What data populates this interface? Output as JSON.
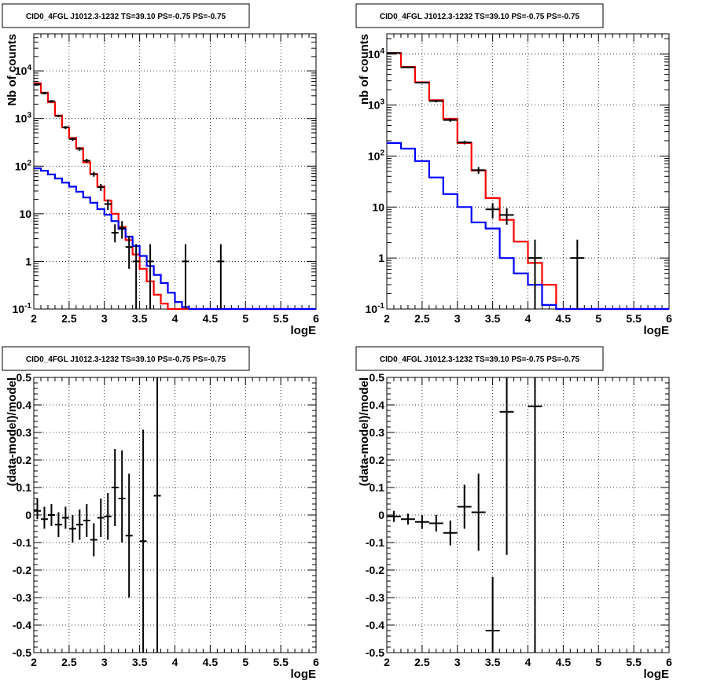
{
  "chart_data": [
    {
      "id": "panel1",
      "type": "step-histogram",
      "title": "CID0_4FGL J1012.3-1232 TS=39.10 PS=-0.75 PS=-0.75",
      "xlabel": "logE",
      "ylabel": "Nb of counts",
      "scale": "log",
      "xlim": [
        2,
        6
      ],
      "ylim": [
        0.1,
        60000
      ],
      "xticks": [
        "2",
        "2.5",
        "3",
        "3.5",
        "4",
        "4.5",
        "5",
        "5.5",
        "6"
      ],
      "yticks": [
        "10^-1",
        "1",
        "10",
        "10^2",
        "10^3",
        "10^4"
      ],
      "grid": true,
      "bin_width": 0.1,
      "series": [
        {
          "color": "#ff0000",
          "values": [
            5500,
            3500,
            2200,
            1150,
            650,
            390,
            240,
            120,
            68,
            37,
            19,
            10,
            5.3,
            2.8,
            1.4,
            0.7,
            0.38,
            0.2,
            0.13,
            0.1,
            0.1,
            0.1,
            0.1,
            0.1,
            0.1,
            0.1,
            0.1,
            0.1,
            0.1,
            0.1,
            0.1,
            0.1,
            0.1,
            0.1,
            0.1,
            0.1,
            0.1,
            0.1,
            0.1,
            0.1
          ]
        },
        {
          "color": "#0000ff",
          "values": [
            90,
            80,
            67,
            55,
            45,
            37,
            29,
            22,
            17,
            12.5,
            9.5,
            7,
            4.8,
            3.3,
            2.1,
            1.3,
            0.8,
            0.52,
            0.35,
            0.22,
            0.14,
            0.11,
            0.1,
            0.1,
            0.1,
            0.1,
            0.1,
            0.1,
            0.1,
            0.1,
            0.1,
            0.1,
            0.1,
            0.1,
            0.1,
            0.1,
            0.1,
            0.1,
            0.1,
            0.1
          ]
        }
      ],
      "points": [
        {
          "x": 2.05,
          "y": 5200,
          "ylo": 4900,
          "yhi": 5500
        },
        {
          "x": 2.15,
          "y": 3400,
          "ylo": 3200,
          "yhi": 3600
        },
        {
          "x": 2.25,
          "y": 2300,
          "ylo": 2150,
          "yhi": 2450
        },
        {
          "x": 2.35,
          "y": 1130,
          "ylo": 1060,
          "yhi": 1200
        },
        {
          "x": 2.45,
          "y": 650,
          "ylo": 600,
          "yhi": 700
        },
        {
          "x": 2.55,
          "y": 370,
          "ylo": 340,
          "yhi": 400
        },
        {
          "x": 2.65,
          "y": 230,
          "ylo": 210,
          "yhi": 250
        },
        {
          "x": 2.75,
          "y": 130,
          "ylo": 118,
          "yhi": 142
        },
        {
          "x": 2.85,
          "y": 68,
          "ylo": 60,
          "yhi": 76
        },
        {
          "x": 2.95,
          "y": 36,
          "ylo": 30,
          "yhi": 42
        },
        {
          "x": 3.05,
          "y": 16,
          "ylo": 12,
          "yhi": 20
        },
        {
          "x": 3.15,
          "y": 4,
          "ylo": 2.5,
          "yhi": 6
        },
        {
          "x": 3.25,
          "y": 5,
          "ylo": 3,
          "yhi": 7
        },
        {
          "x": 3.35,
          "y": 2,
          "ylo": 0.7,
          "yhi": 3.4
        },
        {
          "x": 3.45,
          "y": 1,
          "ylo": 0.1,
          "yhi": 2.3
        },
        {
          "x": 3.65,
          "y": 1,
          "ylo": 0.1,
          "yhi": 2.3
        },
        {
          "x": 4.15,
          "y": 1,
          "ylo": 0.1,
          "yhi": 2.3
        },
        {
          "x": 4.65,
          "y": 1,
          "ylo": 0.1,
          "yhi": 2.3
        }
      ]
    },
    {
      "id": "panel2",
      "type": "step-histogram",
      "title": "CID0_4FGL J1012.3-1232 TS=39.10 PS=-0.75 PS=-0.75",
      "xlabel": "logE",
      "ylabel": "nb of counts",
      "scale": "log",
      "xlim": [
        2,
        6
      ],
      "ylim": [
        0.1,
        25000
      ],
      "xticks": [
        "2",
        "2.5",
        "3",
        "3.5",
        "4",
        "4.5",
        "5",
        "5.5",
        "6"
      ],
      "yticks": [
        "10^-1",
        "1",
        "10",
        "10^2",
        "10^3",
        "10^4"
      ],
      "grid": true,
      "bin_width": 0.2,
      "series": [
        {
          "color": "#ff0000",
          "values": [
            10500,
            5600,
            2800,
            1250,
            540,
            180,
            52,
            15,
            5.6,
            2.1,
            0.8,
            0.3,
            0.1,
            0.1,
            0.1,
            0.1,
            0.1,
            0.1,
            0.1,
            0.1
          ]
        },
        {
          "color": "#0000ff",
          "values": [
            180,
            140,
            80,
            38,
            18,
            10,
            5,
            3.8,
            1,
            0.5,
            0.3,
            0.12,
            0.1,
            0.1,
            0.1,
            0.1,
            0.1,
            0.1,
            0.1,
            0.1
          ]
        }
      ],
      "points": [
        {
          "x": 2.1,
          "y": 10500,
          "ylo": 10200,
          "yhi": 10800
        },
        {
          "x": 2.3,
          "y": 5500,
          "ylo": 5300,
          "yhi": 5700
        },
        {
          "x": 2.5,
          "y": 2750,
          "ylo": 2650,
          "yhi": 2850
        },
        {
          "x": 2.7,
          "y": 1200,
          "ylo": 1130,
          "yhi": 1270
        },
        {
          "x": 2.9,
          "y": 510,
          "ylo": 470,
          "yhi": 550
        },
        {
          "x": 3.1,
          "y": 185,
          "ylo": 170,
          "yhi": 200
        },
        {
          "x": 3.3,
          "y": 53,
          "ylo": 45,
          "yhi": 61
        },
        {
          "x": 3.5,
          "y": 9,
          "ylo": 6,
          "yhi": 12
        },
        {
          "x": 3.7,
          "y": 7,
          "ylo": 4.5,
          "yhi": 9.5
        },
        {
          "x": 4.1,
          "y": 1,
          "ylo": 0.1,
          "yhi": 2.3
        },
        {
          "x": 4.7,
          "y": 1,
          "ylo": 0.1,
          "yhi": 2.3
        }
      ]
    },
    {
      "id": "panel3",
      "type": "scatter-errorbar",
      "title": "CID0_4FGL J1012.3-1232 TS=39.10 PS=-0.75 PS=-0.75",
      "xlabel": "logE",
      "ylabel": "(data-model)/model",
      "scale": "linear",
      "xlim": [
        2,
        6
      ],
      "ylim": [
        -0.5,
        0.5
      ],
      "xticks": [
        "2",
        "2.5",
        "3",
        "3.5",
        "4",
        "4.5",
        "5",
        "5.5",
        "6"
      ],
      "yticks": [
        "-0.5",
        "-0.4",
        "-0.3",
        "-0.2",
        "-0.1",
        "0",
        "0.1",
        "0.2",
        "0.3",
        "0.4",
        "0.5"
      ],
      "grid": true,
      "bin_half_width": 0.05,
      "points": [
        {
          "x": 2.05,
          "y": 0.015,
          "ylo": -0.015,
          "yhi": 0.06
        },
        {
          "x": 2.15,
          "y": -0.015,
          "ylo": -0.05,
          "yhi": 0.03
        },
        {
          "x": 2.25,
          "y": 0.0,
          "ylo": -0.04,
          "yhi": 0.04
        },
        {
          "x": 2.35,
          "y": -0.035,
          "ylo": -0.08,
          "yhi": 0.01
        },
        {
          "x": 2.45,
          "y": -0.01,
          "ylo": -0.05,
          "yhi": 0.03
        },
        {
          "x": 2.55,
          "y": -0.05,
          "ylo": -0.1,
          "yhi": 0.0
        },
        {
          "x": 2.65,
          "y": -0.035,
          "ylo": -0.09,
          "yhi": 0.02
        },
        {
          "x": 2.75,
          "y": -0.02,
          "ylo": -0.08,
          "yhi": 0.04
        },
        {
          "x": 2.85,
          "y": -0.09,
          "ylo": -0.15,
          "yhi": -0.03
        },
        {
          "x": 2.95,
          "y": -0.01,
          "ylo": -0.08,
          "yhi": 0.06
        },
        {
          "x": 3.05,
          "y": -0.005,
          "ylo": -0.09,
          "yhi": 0.08
        },
        {
          "x": 3.15,
          "y": 0.1,
          "ylo": -0.04,
          "yhi": 0.24
        },
        {
          "x": 3.25,
          "y": 0.06,
          "ylo": -0.1,
          "yhi": 0.235
        },
        {
          "x": 3.35,
          "y": -0.075,
          "ylo": -0.3,
          "yhi": 0.15
        },
        {
          "x": 3.55,
          "y": -0.095,
          "ylo": -0.5,
          "yhi": 0.31
        },
        {
          "x": 3.75,
          "y": 0.07,
          "ylo": -0.5,
          "yhi": 0.5
        }
      ]
    },
    {
      "id": "panel4",
      "type": "scatter-errorbar",
      "title": "CID0_4FGL J1012.3-1232 TS=39.10 PS=-0.75 PS=-0.75",
      "xlabel": "logE",
      "ylabel": "(data-model)/model",
      "scale": "linear",
      "xlim": [
        2,
        6
      ],
      "ylim": [
        -0.5,
        0.5
      ],
      "xticks": [
        "2",
        "2.5",
        "3",
        "3.5",
        "4",
        "4.5",
        "5",
        "5.5",
        "6"
      ],
      "yticks": [
        "-0.5",
        "-0.4",
        "-0.3",
        "-0.2",
        "-0.1",
        "0",
        "0.1",
        "0.2",
        "0.3",
        "0.4",
        "0.5"
      ],
      "grid": true,
      "bin_half_width": 0.1,
      "points": [
        {
          "x": 2.1,
          "y": -0.005,
          "ylo": -0.025,
          "yhi": 0.015
        },
        {
          "x": 2.3,
          "y": -0.015,
          "ylo": -0.035,
          "yhi": 0.005
        },
        {
          "x": 2.5,
          "y": -0.025,
          "ylo": -0.05,
          "yhi": 0.0
        },
        {
          "x": 2.7,
          "y": -0.03,
          "ylo": -0.06,
          "yhi": 0.0
        },
        {
          "x": 2.9,
          "y": -0.065,
          "ylo": -0.11,
          "yhi": -0.02
        },
        {
          "x": 3.1,
          "y": 0.03,
          "ylo": -0.05,
          "yhi": 0.11
        },
        {
          "x": 3.3,
          "y": 0.01,
          "ylo": -0.13,
          "yhi": 0.15
        },
        {
          "x": 3.5,
          "y": -0.42,
          "ylo": -0.5,
          "yhi": -0.225
        },
        {
          "x": 3.7,
          "y": 0.375,
          "ylo": -0.145,
          "yhi": 0.5
        },
        {
          "x": 4.1,
          "y": 0.395,
          "ylo": -0.5,
          "yhi": 0.5
        }
      ]
    }
  ]
}
